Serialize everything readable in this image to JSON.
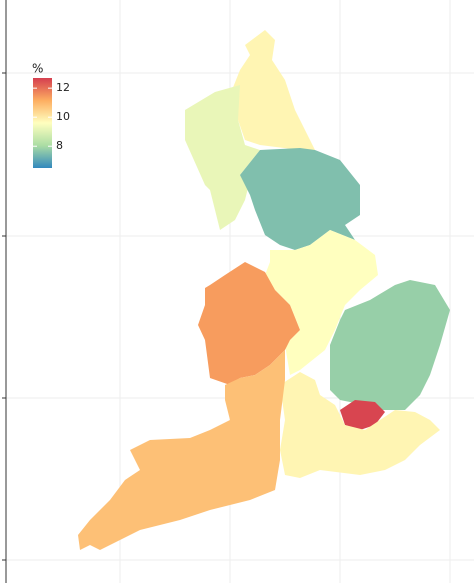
{
  "chart_data": {
    "type": "choropleth",
    "legend_title": "%",
    "values": [
      9.8,
      9.2,
      7.5,
      9.6,
      11.4,
      7.8,
      12.6,
      9.8,
      10.8
    ],
    "clim": [
      6.5,
      12.7
    ],
    "cticks": [
      8,
      10,
      12
    ],
    "colors": [
      "#3288bd",
      "#abdda4",
      "#ffffbf",
      "#fdae61",
      "#d53e4f"
    ],
    "grid": true
  }
}
